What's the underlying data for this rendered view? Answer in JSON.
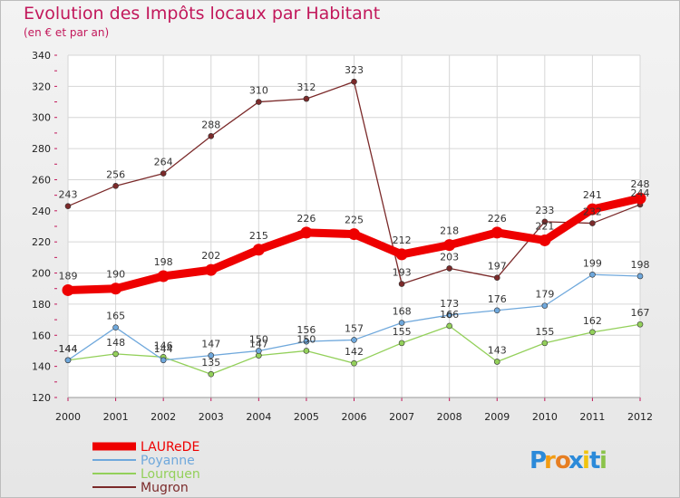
{
  "chart_data": {
    "type": "line",
    "title": "Evolution des Impôts locaux par Habitant",
    "subtitle": "(en € et par an)",
    "x": [
      "2000",
      "2001",
      "2002",
      "2003",
      "2004",
      "2005",
      "2006",
      "2007",
      "2008",
      "2009",
      "2010",
      "2011",
      "2012"
    ],
    "ylim": [
      120,
      340
    ],
    "yticks": [
      120,
      140,
      160,
      180,
      200,
      220,
      240,
      260,
      280,
      300,
      320,
      340
    ],
    "grid": true,
    "legend_position": "bottom-left",
    "series": [
      {
        "name": "LAUReDE",
        "color": "#ee0000",
        "values": [
          189,
          190,
          198,
          202,
          215,
          226,
          225,
          212,
          218,
          226,
          221,
          241,
          248
        ],
        "labels": [
          "189",
          "190",
          "198",
          "202",
          "215",
          "226",
          "225",
          "212",
          "218",
          "226",
          "221",
          "241",
          "248"
        ]
      },
      {
        "name": "Poyanne",
        "color": "#6fa8dc",
        "values": [
          144,
          165,
          144,
          147,
          150,
          156,
          157,
          168,
          173,
          176,
          179,
          199,
          198
        ],
        "labels": [
          "144",
          "165",
          "144",
          "147",
          "150",
          "156",
          "157",
          "168",
          "173",
          "176",
          "179",
          "199",
          "198"
        ]
      },
      {
        "name": "Lourquen",
        "color": "#93d05a",
        "values": [
          144,
          148,
          146,
          135,
          147,
          150,
          142,
          155,
          166,
          143,
          155,
          162,
          167
        ],
        "labels": [
          "144",
          "148",
          "146",
          "135",
          "147",
          "150",
          "142",
          "155",
          "166",
          "143",
          "155",
          "162",
          "167"
        ]
      },
      {
        "name": "Mugron",
        "color": "#7b2a2a",
        "values": [
          243,
          256,
          264,
          288,
          310,
          312,
          323,
          193,
          203,
          197,
          233,
          232,
          244
        ],
        "labels": [
          "243",
          "256",
          "264",
          "288",
          "310",
          "312",
          "323",
          "193",
          "203",
          "197",
          "233",
          "232",
          "244"
        ]
      }
    ]
  },
  "brand": {
    "text": "Proxiti",
    "letters": [
      "P",
      "r",
      "o",
      "x",
      "i",
      "t",
      "i"
    ],
    "colors": [
      "#2b8ad9",
      "#f39c12",
      "#e67e22",
      "#2b8ad9",
      "#f1c40f",
      "#2b8ad9",
      "#8bc34a"
    ]
  }
}
